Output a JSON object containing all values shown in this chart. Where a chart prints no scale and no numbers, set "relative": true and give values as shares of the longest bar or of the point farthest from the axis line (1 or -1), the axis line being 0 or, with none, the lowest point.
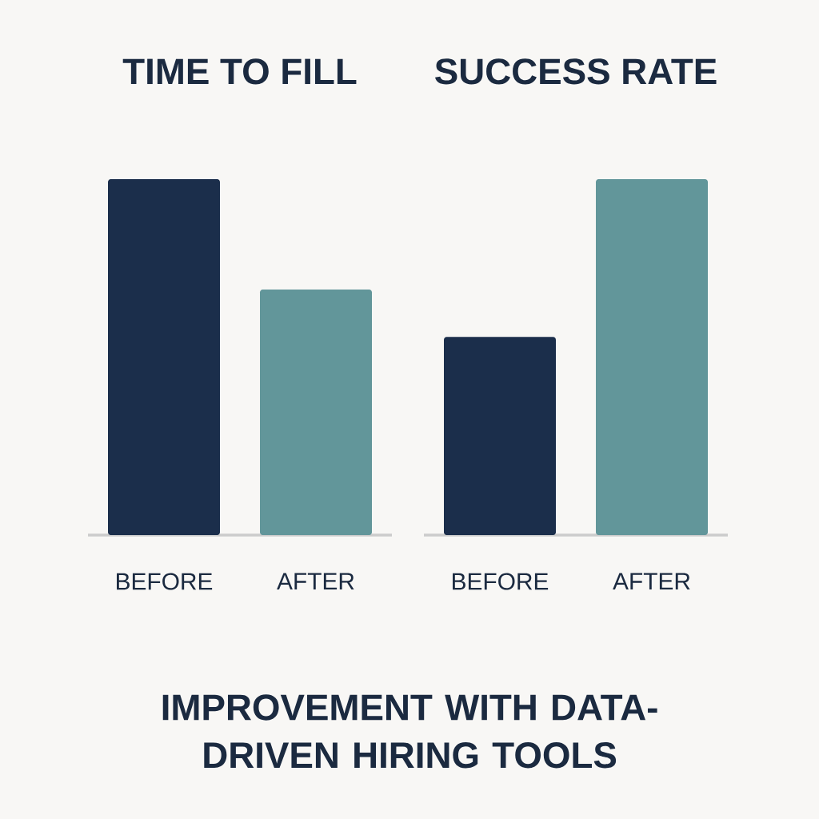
{
  "chart_data": [
    {
      "type": "bar",
      "title": "TIME TO FILL",
      "categories": [
        "BEFORE",
        "AFTER"
      ],
      "values": [
        1,
        0.69
      ],
      "colors": [
        "#1b2e4b",
        "#62969a"
      ],
      "relative": true,
      "annotations": [
        "IMPROVEMENT WITH DATA-DRIVEN HIRING TOOLS"
      ]
    },
    {
      "type": "bar",
      "title": "SUCCESS RATE",
      "categories": [
        "BEFORE",
        "AFTER"
      ],
      "values": [
        0.557,
        1
      ],
      "colors": [
        "#1b2e4b",
        "#62969a"
      ],
      "relative": true
    }
  ]
}
